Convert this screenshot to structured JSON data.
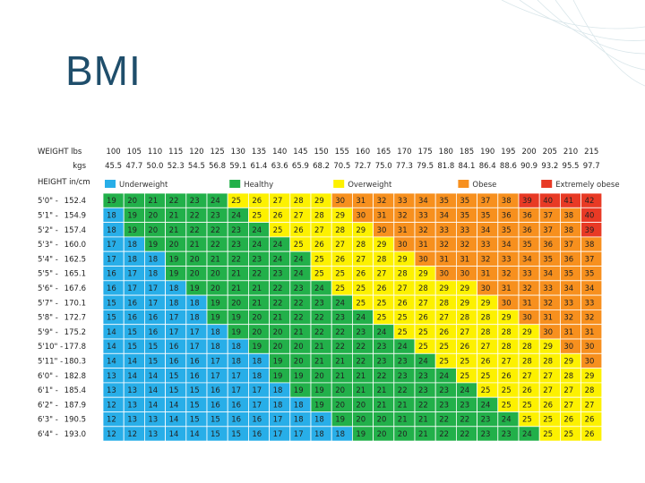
{
  "slide": {
    "title": "BMI"
  },
  "colors": {
    "underweight": "#28aee8",
    "healthy": "#22b04a",
    "overweight": "#fdf100",
    "obese": "#f7901e",
    "extremely_obese": "#e83a25",
    "title": "#1f4e6b"
  },
  "chart_data": {
    "type": "table",
    "header_labels": {
      "weight_lbs": "WEIGHT lbs",
      "weight_kgs": "kgs",
      "height": "HEIGHT in/cm"
    },
    "weights_lbs": [
      100,
      105,
      110,
      115,
      120,
      125,
      130,
      135,
      140,
      145,
      150,
      155,
      160,
      165,
      170,
      175,
      180,
      185,
      190,
      195,
      200,
      205,
      210,
      215
    ],
    "weights_kgs": [
      "45.5",
      "47.7",
      "50.0",
      "52.3",
      "54.5",
      "56.8",
      "59.1",
      "61.4",
      "63.6",
      "65.9",
      "68.2",
      "70.5",
      "72.7",
      "75.0",
      "77.3",
      "79.5",
      "81.8",
      "84.1",
      "86.4",
      "88.6",
      "90.9",
      "93.2",
      "95.5",
      "97.7"
    ],
    "heights": [
      {
        "ftin": "5'0\"",
        "cm": "152.4"
      },
      {
        "ftin": "5'1\"",
        "cm": "154.9"
      },
      {
        "ftin": "5'2\"",
        "cm": "157.4"
      },
      {
        "ftin": "5'3\"",
        "cm": "160.0"
      },
      {
        "ftin": "5'4\"",
        "cm": "162.5"
      },
      {
        "ftin": "5'5\"",
        "cm": "165.1"
      },
      {
        "ftin": "5'6\"",
        "cm": "167.6"
      },
      {
        "ftin": "5'7\"",
        "cm": "170.1"
      },
      {
        "ftin": "5'8\"",
        "cm": "172.7"
      },
      {
        "ftin": "5'9\"",
        "cm": "175.2"
      },
      {
        "ftin": "5'10\"",
        "cm": "177.8"
      },
      {
        "ftin": "5'11\"",
        "cm": "180.3"
      },
      {
        "ftin": "6'0\"",
        "cm": "182.8"
      },
      {
        "ftin": "6'1\"",
        "cm": "185.4"
      },
      {
        "ftin": "6'2\"",
        "cm": "187.9"
      },
      {
        "ftin": "6'3\"",
        "cm": "190.5"
      },
      {
        "ftin": "6'4\"",
        "cm": "193.0"
      }
    ],
    "bmi_rows": [
      [
        19,
        20,
        21,
        22,
        23,
        24,
        25,
        26,
        27,
        28,
        29,
        30,
        31,
        32,
        33,
        34,
        35,
        35,
        37,
        38,
        39,
        40,
        41,
        42
      ],
      [
        18,
        19,
        20,
        21,
        22,
        23,
        24,
        25,
        26,
        27,
        28,
        29,
        30,
        31,
        32,
        33,
        34,
        35,
        35,
        36,
        36,
        37,
        38,
        40
      ],
      [
        18,
        19,
        20,
        21,
        22,
        22,
        23,
        24,
        25,
        26,
        27,
        28,
        29,
        30,
        31,
        32,
        33,
        33,
        34,
        35,
        36,
        37,
        38,
        39
      ],
      [
        17,
        18,
        19,
        20,
        21,
        22,
        23,
        24,
        24,
        25,
        26,
        27,
        28,
        29,
        30,
        31,
        32,
        32,
        33,
        34,
        35,
        36,
        37,
        38
      ],
      [
        17,
        18,
        18,
        19,
        20,
        21,
        22,
        23,
        24,
        24,
        25,
        26,
        27,
        28,
        29,
        30,
        31,
        31,
        32,
        33,
        34,
        35,
        36,
        37
      ],
      [
        16,
        17,
        18,
        19,
        20,
        20,
        21,
        22,
        23,
        24,
        25,
        25,
        26,
        27,
        28,
        29,
        30,
        30,
        31,
        32,
        33,
        34,
        35,
        35
      ],
      [
        16,
        17,
        17,
        18,
        19,
        20,
        21,
        21,
        22,
        23,
        24,
        25,
        25,
        26,
        27,
        28,
        29,
        29,
        30,
        31,
        32,
        33,
        34,
        34
      ],
      [
        15,
        16,
        17,
        18,
        18,
        19,
        20,
        21,
        22,
        22,
        23,
        24,
        25,
        25,
        26,
        27,
        28,
        29,
        29,
        30,
        31,
        32,
        33,
        33
      ],
      [
        15,
        16,
        16,
        17,
        18,
        19,
        19,
        20,
        21,
        22,
        22,
        23,
        24,
        25,
        25,
        26,
        27,
        28,
        28,
        29,
        30,
        31,
        32,
        32
      ],
      [
        14,
        15,
        16,
        17,
        17,
        18,
        19,
        20,
        20,
        21,
        22,
        22,
        23,
        24,
        25,
        25,
        26,
        27,
        28,
        28,
        29,
        30,
        31,
        31
      ],
      [
        14,
        15,
        15,
        16,
        17,
        18,
        18,
        19,
        20,
        20,
        21,
        22,
        22,
        23,
        24,
        25,
        25,
        26,
        27,
        28,
        28,
        29,
        30,
        30
      ],
      [
        14,
        14,
        15,
        16,
        16,
        17,
        18,
        18,
        19,
        20,
        21,
        21,
        22,
        23,
        23,
        24,
        25,
        25,
        26,
        27,
        28,
        28,
        29,
        30
      ],
      [
        13,
        14,
        14,
        15,
        16,
        17,
        17,
        18,
        19,
        19,
        20,
        21,
        21,
        22,
        23,
        23,
        24,
        25,
        25,
        26,
        27,
        27,
        28,
        29
      ],
      [
        13,
        13,
        14,
        15,
        15,
        16,
        17,
        17,
        18,
        19,
        19,
        20,
        21,
        21,
        22,
        23,
        23,
        24,
        25,
        25,
        26,
        27,
        27,
        28
      ],
      [
        12,
        13,
        14,
        14,
        15,
        16,
        16,
        17,
        18,
        18,
        19,
        20,
        20,
        21,
        21,
        22,
        23,
        23,
        24,
        25,
        25,
        26,
        27,
        27
      ],
      [
        12,
        13,
        13,
        14,
        15,
        15,
        16,
        16,
        17,
        18,
        18,
        19,
        20,
        20,
        21,
        21,
        22,
        22,
        23,
        24,
        25,
        25,
        26,
        26
      ],
      [
        12,
        12,
        13,
        14,
        14,
        15,
        15,
        16,
        17,
        17,
        18,
        18,
        19,
        20,
        20,
        21,
        22,
        22,
        23,
        23,
        24,
        25,
        25,
        26
      ]
    ],
    "categories": [
      {
        "label": "Underweight",
        "key": "underweight"
      },
      {
        "label": "Healthy",
        "key": "healthy"
      },
      {
        "label": "Overweight",
        "key": "overweight"
      },
      {
        "label": "Obese",
        "key": "obese"
      },
      {
        "label": "Extremely obese",
        "key": "extremely_obese"
      }
    ]
  }
}
